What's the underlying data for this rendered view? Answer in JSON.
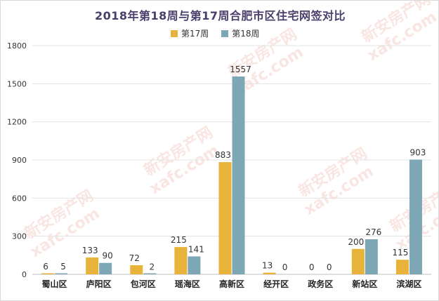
{
  "chart_data": {
    "type": "bar",
    "title": "2018年第18周与第17周合肥市区住宅网签对比",
    "categories": [
      "蜀山区",
      "庐阳区",
      "包河区",
      "瑶海区",
      "高新区",
      "经开区",
      "政务区",
      "新站区",
      "滨湖区"
    ],
    "series": [
      {
        "name": "第17周",
        "values": [
          6,
          133,
          72,
          215,
          883,
          13,
          0,
          200,
          115
        ],
        "color": "#e8b33a"
      },
      {
        "name": "第18周",
        "values": [
          5,
          90,
          2,
          141,
          1557,
          0,
          0,
          276,
          903
        ],
        "color": "#7da7b5"
      }
    ],
    "ylim": [
      0,
      1800
    ],
    "yticks": [
      0,
      300,
      600,
      900,
      1200,
      1500,
      1800
    ],
    "grid": true,
    "legend_position": "top-center",
    "xlabel": "",
    "ylabel": ""
  },
  "watermark": {
    "brand": "新安房产网",
    "domain": "xafc.com"
  }
}
